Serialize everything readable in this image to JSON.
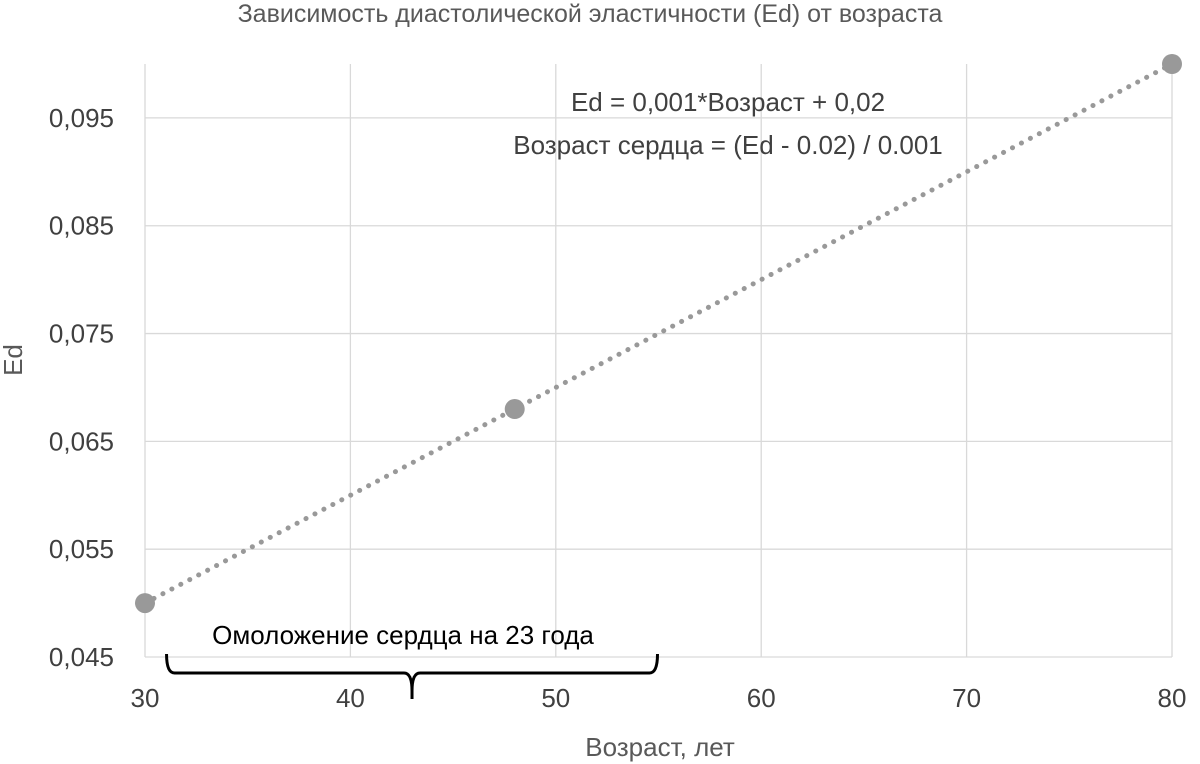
{
  "chart_data": {
    "type": "scatter",
    "title": "Зависимость диастолической эластичности (Ed) от возраста",
    "xlabel": "Возраст, лет",
    "ylabel": "Ed",
    "xlim": [
      30,
      80
    ],
    "ylim": [
      0.045,
      0.1
    ],
    "x_ticks": [
      30,
      40,
      50,
      60,
      70,
      80
    ],
    "x_tick_labels": [
      "30",
      "40",
      "50",
      "60",
      "70",
      "80"
    ],
    "y_ticks": [
      0.045,
      0.055,
      0.065,
      0.075,
      0.085,
      0.095
    ],
    "y_tick_labels": [
      "0,045",
      "0,055",
      "0,065",
      "0,075",
      "0,085",
      "0,095"
    ],
    "grid": true,
    "series": [
      {
        "points": [
          {
            "x": 30,
            "y": 0.05
          },
          {
            "x": 48,
            "y": 0.068
          },
          {
            "x": 80,
            "y": 0.1
          }
        ],
        "color": "#999999"
      }
    ],
    "trendline": {
      "style": "dotted",
      "color": "#999999",
      "x": [
        30,
        80
      ],
      "y": [
        0.05,
        0.1
      ]
    },
    "annotations": {
      "equation_1": "Ed = 0,001*Возраст + 0,02",
      "equation_2": "Возраст сердца = (Ed - 0.02) / 0.001",
      "brace_label": "Омоложение сердца на 23 года",
      "brace_range": [
        31,
        55
      ]
    }
  }
}
